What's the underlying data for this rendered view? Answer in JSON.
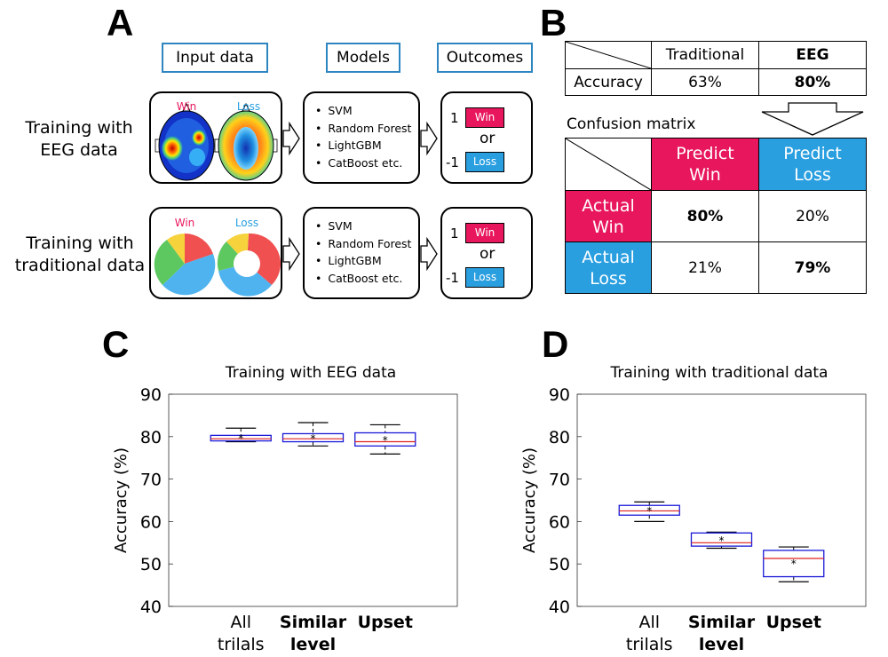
{
  "panels": {
    "a": "A",
    "b": "B",
    "c": "C",
    "d": "D"
  },
  "panel_a": {
    "headers": {
      "input": "Input data",
      "models": "Models",
      "outcomes": "Outcomes"
    },
    "row1_label": [
      "Training with",
      "EEG data"
    ],
    "row2_label": [
      "Training with",
      "traditional data"
    ],
    "eeg_labels": {
      "win": "Win",
      "loss": "Loss"
    },
    "pie_labels": {
      "win": "Win",
      "loss": "Loss"
    },
    "models": [
      "SVM",
      "Random Forest",
      "LightGBM",
      "CatBoost etc."
    ],
    "outcomes": {
      "win_num": "1",
      "win": "Win",
      "or": "or",
      "loss_num": "-1",
      "loss": "Loss"
    },
    "colors": {
      "win": "#e8175d",
      "loss": "#2a9fe0",
      "header_border": "#2e86c1"
    }
  },
  "panel_b": {
    "accuracy_table": {
      "headers": [
        "Traditional",
        "EEG"
      ],
      "row_label": "Accuracy",
      "values": [
        "63%",
        "80%"
      ]
    },
    "confusion_title": "Confusion matrix",
    "confusion": {
      "col_headers": [
        [
          "Predict",
          "Win"
        ],
        [
          "Predict",
          "Loss"
        ]
      ],
      "row_headers": [
        [
          "Actual",
          "Win"
        ],
        [
          "Actual",
          "Loss"
        ]
      ],
      "values": [
        [
          "80%",
          "20%"
        ],
        [
          "21%",
          "79%"
        ]
      ]
    }
  },
  "chart_data": [
    {
      "type": "box",
      "title": "Training with EEG data",
      "ylabel": "Accuracy (%)",
      "ylim": [
        40,
        90
      ],
      "yticks": [
        40,
        50,
        60,
        70,
        80,
        90
      ],
      "categories": [
        [
          "All",
          "trilals"
        ],
        [
          "Similar",
          "level"
        ],
        [
          "Upset"
        ]
      ],
      "boxes": [
        {
          "min": 78.8,
          "q1": 79.0,
          "median": 79.5,
          "q3": 80.3,
          "max": 82.0,
          "mean": 79.7
        },
        {
          "min": 77.8,
          "q1": 78.8,
          "median": 79.5,
          "q3": 80.7,
          "max": 83.3,
          "mean": 79.8
        },
        {
          "min": 75.9,
          "q1": 77.8,
          "median": 78.8,
          "q3": 80.9,
          "max": 82.8,
          "mean": 79.3
        }
      ]
    },
    {
      "type": "box",
      "title": "Training with traditional data",
      "ylabel": "Accuracy (%)",
      "ylim": [
        40,
        90
      ],
      "yticks": [
        40,
        50,
        60,
        70,
        80,
        90
      ],
      "categories": [
        [
          "All",
          "trilals"
        ],
        [
          "Similar",
          "level"
        ],
        [
          "Upset"
        ]
      ],
      "boxes": [
        {
          "min": 60.0,
          "q1": 61.5,
          "median": 62.5,
          "q3": 63.8,
          "max": 64.6,
          "mean": 62.7
        },
        {
          "min": 53.7,
          "q1": 54.2,
          "median": 55.0,
          "q3": 57.3,
          "max": 57.5,
          "mean": 55.7
        },
        {
          "min": 45.8,
          "q1": 47.0,
          "median": 51.3,
          "q3": 53.2,
          "max": 54.0,
          "mean": 50.3
        }
      ]
    }
  ]
}
